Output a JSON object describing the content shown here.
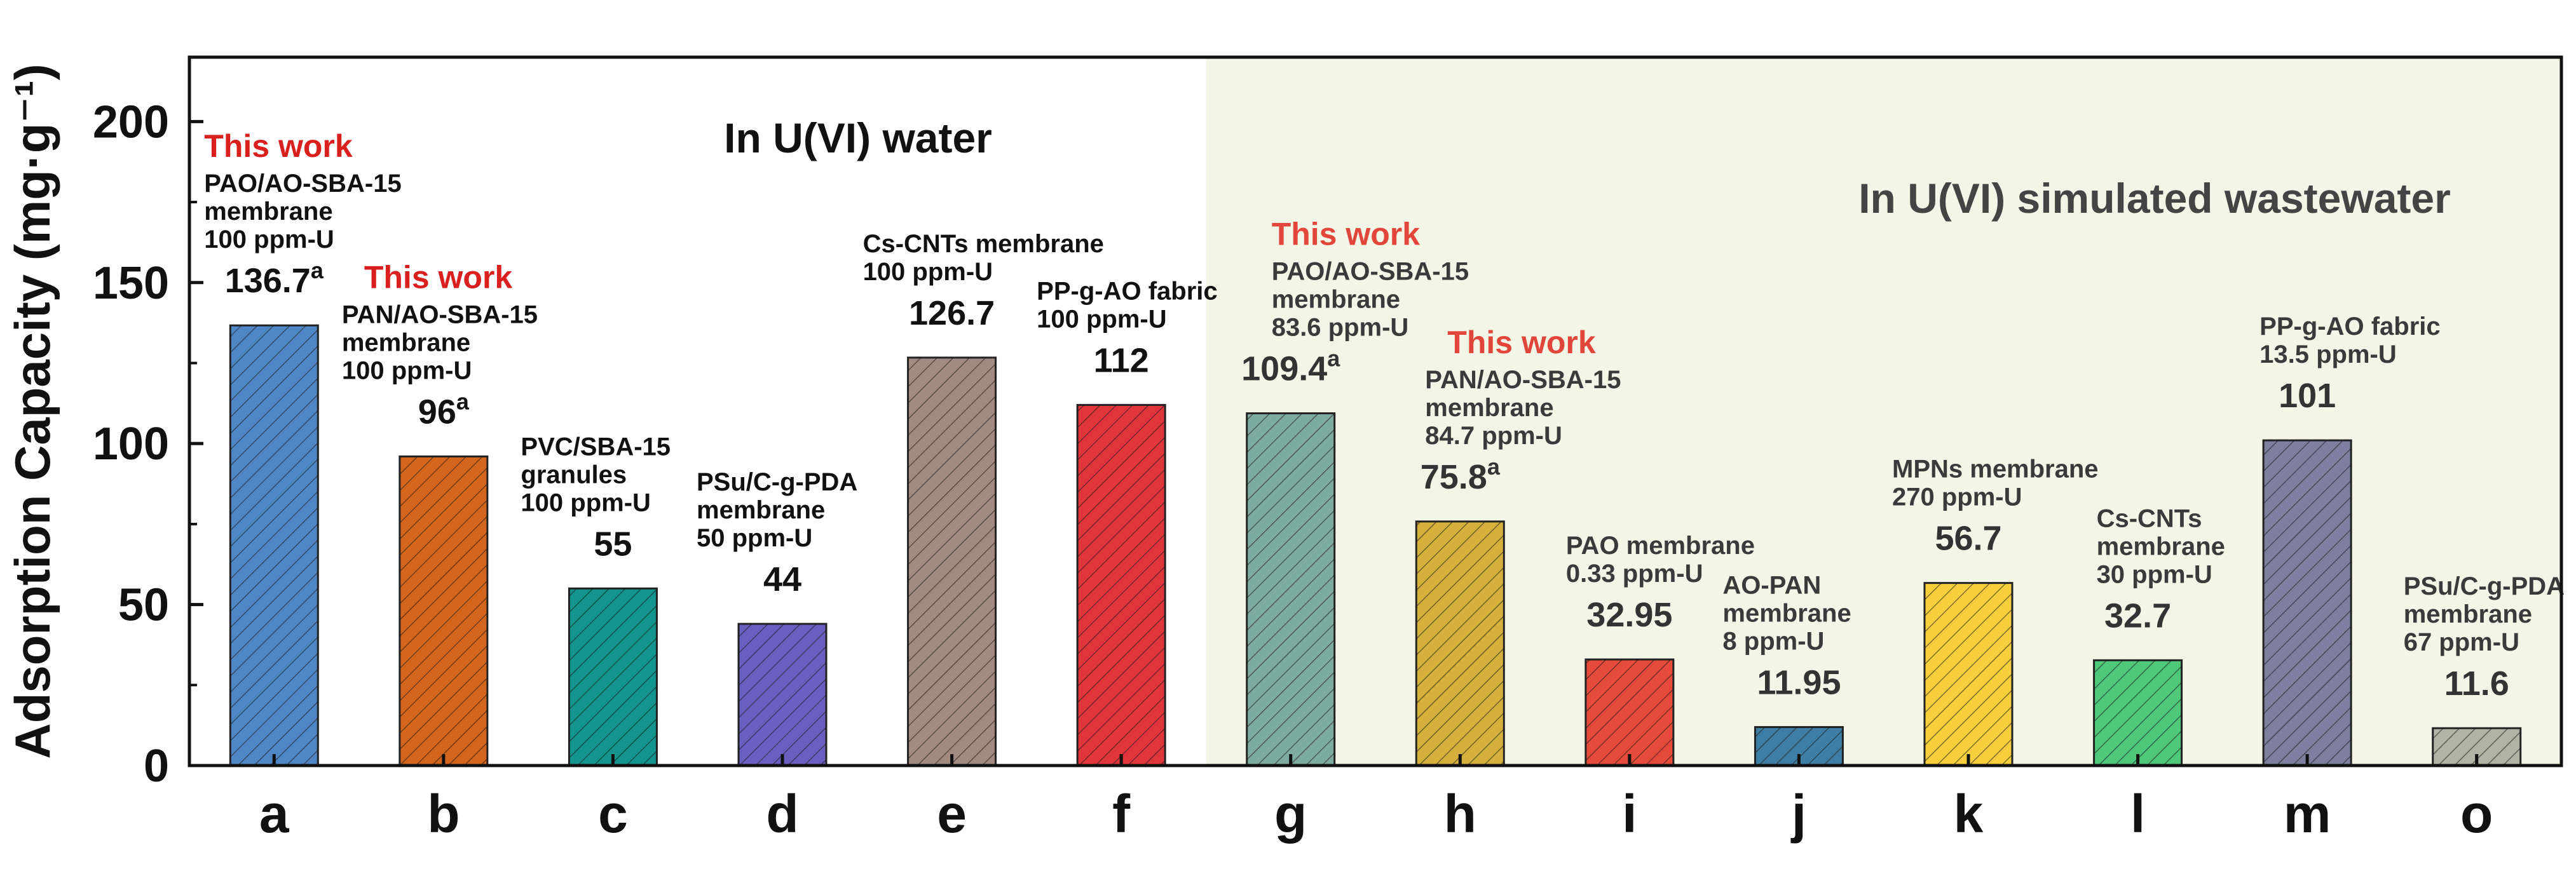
{
  "chart_data": {
    "type": "bar",
    "ylabel": "Adsorption Capacity (mg·g⁻¹)",
    "xlabel": "",
    "ylim": [
      0,
      220
    ],
    "yticks": [
      0,
      50,
      100,
      150,
      200
    ],
    "grid": false,
    "regions": [
      {
        "label": "In U(VI) water",
        "categories": [
          "a",
          "b",
          "c",
          "d",
          "e",
          "f"
        ],
        "background": "#ffffff"
      },
      {
        "label": "In U(VI) simulated wastewater",
        "categories": [
          "g",
          "h",
          "i",
          "j",
          "k",
          "l",
          "m",
          "o"
        ],
        "background": "#f3f5e6"
      }
    ],
    "categories": [
      "a",
      "b",
      "c",
      "d",
      "e",
      "f",
      "g",
      "h",
      "i",
      "j",
      "k",
      "l",
      "m",
      "o"
    ],
    "values": [
      136.7,
      96,
      55,
      44,
      126.7,
      112,
      109.4,
      75.8,
      32.95,
      11.95,
      56.7,
      32.7,
      101,
      11.6
    ],
    "value_labels": [
      "136.7",
      "96",
      "55",
      "44",
      "126.7",
      "112",
      "109.4",
      "75.8",
      "32.95",
      "11.95",
      "56.7",
      "32.7",
      "101",
      "11.6"
    ],
    "superscripts": [
      "a",
      "a",
      "",
      "",
      "",
      "",
      "a",
      "a",
      "",
      "",
      "",
      "",
      "",
      ""
    ],
    "descriptions": [
      [
        "PAO/AO-SBA-15",
        "membrane",
        "100 ppm-U"
      ],
      [
        "PAN/AO-SBA-15",
        "membrane",
        "100 ppm-U"
      ],
      [
        "PVC/SBA-15",
        "granules",
        "100 ppm-U"
      ],
      [
        "PSu/C-g-PDA",
        "membrane",
        "50 ppm-U"
      ],
      [
        "Cs-CNTs membrane",
        "100 ppm-U"
      ],
      [
        "PP-g-AO fabric",
        "100 ppm-U"
      ],
      [
        "PAO/AO-SBA-15",
        "membrane",
        "83.6 ppm-U"
      ],
      [
        "PAN/AO-SBA-15",
        "membrane",
        "84.7 ppm-U"
      ],
      [
        "PAO membrane",
        "0.33 ppm-U"
      ],
      [
        "AO-PAN",
        "membrane",
        "8 ppm-U"
      ],
      [
        "MPNs membrane",
        "270 ppm-U"
      ],
      [
        "Cs-CNTs",
        "membrane",
        "30 ppm-U"
      ],
      [
        "PP-g-AO fabric",
        "13.5 ppm-U"
      ],
      [
        "PSu/C-g-PDA",
        "membrane",
        "67 ppm-U"
      ]
    ],
    "this_work": [
      "This work",
      "This work",
      "",
      "",
      "",
      "",
      "This work",
      "This work",
      "",
      "",
      "",
      "",
      "",
      ""
    ],
    "colors": [
      "#4f86c6",
      "#d4651c",
      "#13948c",
      "#6a5fc1",
      "#a38a80",
      "#e0353b",
      "#7eaba0",
      "#d6b03c",
      "#e64a3a",
      "#3f7ea4",
      "#f7cf3d",
      "#4fc87a",
      "#7c7f9e",
      "#b1b3a4"
    ],
    "this_work_color": "#d9201f"
  }
}
